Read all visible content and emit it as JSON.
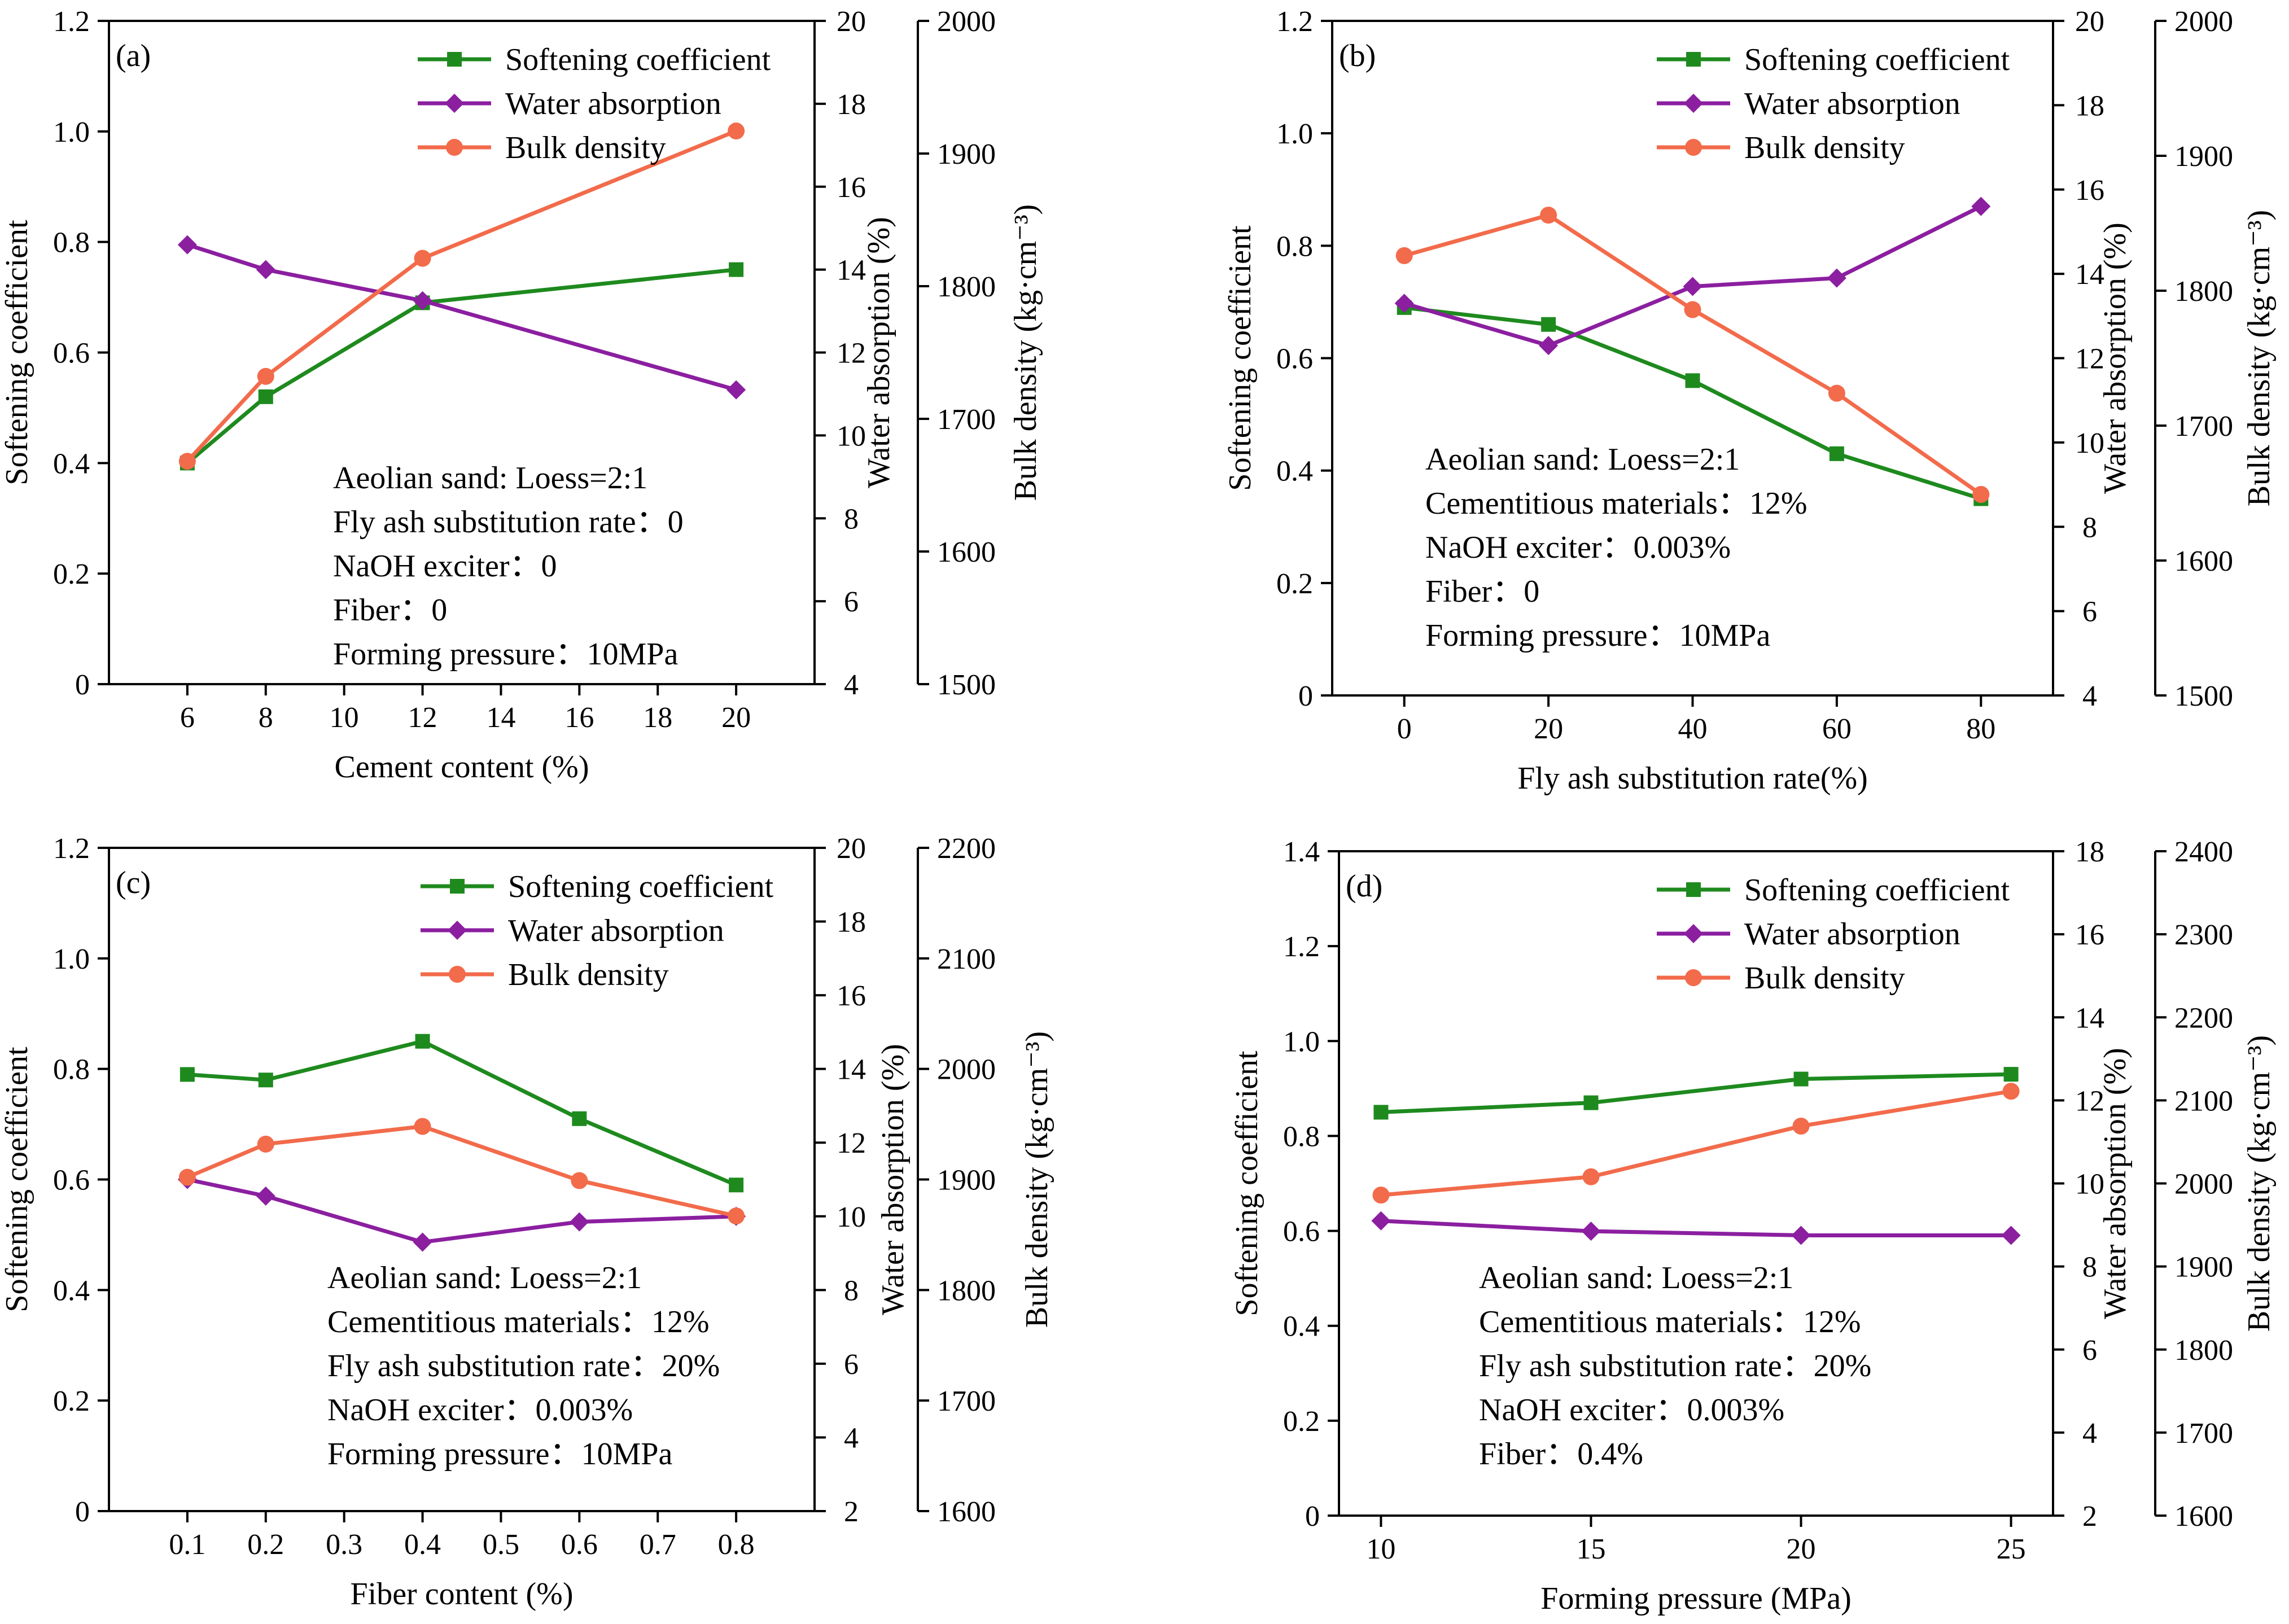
{
  "series_styles": {
    "Softening coefficient": {
      "color": "#1e8a1e",
      "marker": "square"
    },
    "Water absorption": {
      "color": "#8b1fa0",
      "marker": "diamond"
    },
    "Bulk density": {
      "color": "#f26b4b",
      "marker": "circle"
    }
  },
  "chart_data": [
    {
      "type": "line",
      "panel": "(a)",
      "xlabel": "Cement content (%)",
      "x_ticks": [
        "6",
        "8",
        "10",
        "12",
        "14",
        "16",
        "18",
        "20"
      ],
      "xlim": [
        4,
        22
      ],
      "axes": [
        {
          "label": "Softening coefficient",
          "ylim": [
            0,
            1.2
          ],
          "ticks": [
            "0",
            "0.2",
            "0.4",
            "0.6",
            "0.8",
            "1.0",
            "1.2"
          ]
        },
        {
          "label": "Water absorption (%)",
          "ylim": [
            4,
            20
          ],
          "ticks": [
            "4",
            "6",
            "8",
            "10",
            "12",
            "14",
            "16",
            "18",
            "20"
          ]
        },
        {
          "label": "Bulk density (kg·cm⁻³)",
          "ylim": [
            1500,
            2000
          ],
          "ticks": [
            "1500",
            "1600",
            "1700",
            "1800",
            "1900",
            "2000"
          ]
        }
      ],
      "series": [
        {
          "name": "Softening coefficient",
          "axis": 0,
          "x": [
            6,
            8,
            12,
            20
          ],
          "values": [
            0.4,
            0.52,
            0.69,
            0.75
          ]
        },
        {
          "name": "Water absorption",
          "axis": 1,
          "x": [
            6,
            8,
            12,
            20
          ],
          "values": [
            14.6,
            14.0,
            13.25,
            11.1
          ]
        },
        {
          "name": "Bulk density",
          "axis": 2,
          "x": [
            6,
            8,
            12,
            20
          ],
          "values": [
            1668,
            1732,
            1821,
            1917
          ]
        }
      ],
      "legend": [
        "Softening coefficient",
        "Water absorption",
        "Bulk density"
      ],
      "annotations": [
        "Aeolian sand: Loess=2:1",
        "Fly ash substitution rate：0",
        "NaOH exciter：0",
        "Fiber：0",
        "Forming pressure：10MPa"
      ]
    },
    {
      "type": "line",
      "panel": "(b)",
      "xlabel": "Fly ash substitution rate(%)",
      "x_ticks": [
        "0",
        "20",
        "40",
        "60",
        "80"
      ],
      "xlim": [
        -10,
        90
      ],
      "axes": [
        {
          "label": "Softening coefficient",
          "ylim": [
            0,
            1.2
          ],
          "ticks": [
            "0",
            "0.2",
            "0.4",
            "0.6",
            "0.8",
            "1.0",
            "1.2"
          ]
        },
        {
          "label": "Water absorption (%)",
          "ylim": [
            4,
            20
          ],
          "ticks": [
            "4",
            "6",
            "8",
            "10",
            "12",
            "14",
            "16",
            "18",
            "20"
          ]
        },
        {
          "label": "Bulk density (kg·cm⁻³)",
          "ylim": [
            1500,
            2000
          ],
          "ticks": [
            "1500",
            "1600",
            "1700",
            "1800",
            "1900",
            "2000"
          ]
        }
      ],
      "series": [
        {
          "name": "Softening coefficient",
          "axis": 0,
          "x": [
            0,
            20,
            40,
            60,
            80
          ],
          "values": [
            0.69,
            0.66,
            0.56,
            0.43,
            0.35
          ]
        },
        {
          "name": "Water absorption",
          "axis": 1,
          "x": [
            0,
            20,
            40,
            60,
            80
          ],
          "values": [
            13.3,
            12.3,
            13.7,
            13.9,
            15.6
          ]
        },
        {
          "name": "Bulk density",
          "axis": 2,
          "x": [
            0,
            20,
            40,
            60,
            80
          ],
          "values": [
            1826,
            1856,
            1786,
            1724,
            1649
          ]
        }
      ],
      "legend": [
        "Softening coefficient",
        "Water absorption",
        "Bulk density"
      ],
      "annotations": [
        "Aeolian sand: Loess=2:1",
        "Cementitious materials：12%",
        "NaOH exciter：0.003%",
        "Fiber：0",
        "Forming pressure：10MPa"
      ]
    },
    {
      "type": "line",
      "panel": "(c)",
      "xlabel": "Fiber content (%)",
      "x_ticks": [
        "0.1",
        "0.2",
        "0.3",
        "0.4",
        "0.5",
        "0.6",
        "0.7",
        "0.8"
      ],
      "xlim": [
        0,
        0.9
      ],
      "axes": [
        {
          "label": "Softening coefficient",
          "ylim": [
            0,
            1.2
          ],
          "ticks": [
            "0",
            "0.2",
            "0.4",
            "0.6",
            "0.8",
            "1.0",
            "1.2"
          ]
        },
        {
          "label": "Water absorption (%)",
          "ylim": [
            2,
            20
          ],
          "ticks": [
            "2",
            "4",
            "6",
            "8",
            "10",
            "12",
            "14",
            "16",
            "18",
            "20"
          ]
        },
        {
          "label": "Bulk density (kg·cm⁻³)",
          "ylim": [
            1600,
            2200
          ],
          "ticks": [
            "1600",
            "1700",
            "1800",
            "1900",
            "2000",
            "2100",
            "2200"
          ]
        }
      ],
      "series": [
        {
          "name": "Softening coefficient",
          "axis": 0,
          "x": [
            0.1,
            0.2,
            0.4,
            0.6,
            0.8
          ],
          "values": [
            0.79,
            0.78,
            0.85,
            0.71,
            0.59
          ]
        },
        {
          "name": "Water absorption",
          "axis": 1,
          "x": [
            0.1,
            0.2,
            0.4,
            0.6,
            0.8
          ],
          "values": [
            11.0,
            10.55,
            9.3,
            9.85,
            10.0
          ]
        },
        {
          "name": "Bulk density",
          "axis": 2,
          "x": [
            0.1,
            0.2,
            0.4,
            0.6,
            0.8
          ],
          "values": [
            1902,
            1932,
            1948,
            1899,
            1867
          ]
        }
      ],
      "legend": [
        "Softening coefficient",
        "Water absorption",
        "Bulk density"
      ],
      "annotations": [
        "Aeolian sand: Loess=2:1",
        "Cementitious materials：12%",
        "Fly ash substitution rate：20%",
        "NaOH exciter：0.003%",
        "Forming pressure：10MPa"
      ]
    },
    {
      "type": "line",
      "panel": "(d)",
      "xlabel": "Forming pressure (MPa)",
      "x_ticks": [
        "10",
        "15",
        "20",
        "25"
      ],
      "xlim": [
        9,
        26
      ],
      "axes": [
        {
          "label": "Softening coefficient",
          "ylim": [
            0,
            1.4
          ],
          "ticks": [
            "0",
            "0.2",
            "0.4",
            "0.6",
            "0.8",
            "1.0",
            "1.2",
            "1.4"
          ]
        },
        {
          "label": "Water absorption (%)",
          "ylim": [
            2,
            18
          ],
          "ticks": [
            "2",
            "4",
            "6",
            "8",
            "10",
            "12",
            "14",
            "16",
            "18"
          ]
        },
        {
          "label": "Bulk density (kg·cm⁻³)",
          "ylim": [
            1600,
            2400
          ],
          "ticks": [
            "1600",
            "1700",
            "1800",
            "1900",
            "2000",
            "2100",
            "2200",
            "2300",
            "2400"
          ]
        }
      ],
      "series": [
        {
          "name": "Softening coefficient",
          "axis": 0,
          "x": [
            10,
            15,
            20,
            25
          ],
          "values": [
            0.85,
            0.87,
            0.92,
            0.93
          ]
        },
        {
          "name": "Water absorption",
          "axis": 1,
          "x": [
            10,
            15,
            20,
            25
          ],
          "values": [
            9.1,
            8.85,
            8.75,
            8.75
          ]
        },
        {
          "name": "Bulk density",
          "axis": 2,
          "x": [
            10,
            15,
            20,
            25
          ],
          "values": [
            1986,
            2008,
            2069,
            2111
          ]
        }
      ],
      "legend": [
        "Softening coefficient",
        "Water absorption",
        "Bulk density"
      ],
      "annotations": [
        "Aeolian sand: Loess=2:1",
        "Cementitious materials：12%",
        "Fly ash substitution rate：20%",
        "NaOH exciter：0.003%",
        "Fiber：0.4%"
      ]
    }
  ]
}
